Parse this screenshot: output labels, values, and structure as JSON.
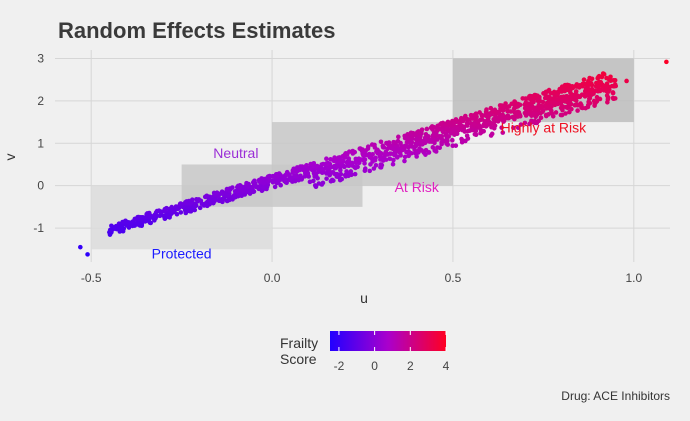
{
  "chart_data": {
    "type": "scatter",
    "title": "Random Effects Estimates",
    "xlabel": "u",
    "ylabel": "v",
    "xlim": [
      -0.6,
      1.1
    ],
    "ylim": [
      -1.8,
      3.2
    ],
    "x_ticks": [
      "-0.5",
      "0.0",
      "0.5",
      "1.0"
    ],
    "x_tick_values": [
      -0.5,
      0,
      0.5,
      1.0
    ],
    "y_ticks": [
      "3",
      "2",
      "1",
      "0",
      "-1"
    ],
    "y_tick_values": [
      3,
      2,
      1,
      0,
      -1
    ],
    "grid": true,
    "regions": [
      {
        "label": "Protected",
        "x": [
          -0.5,
          0
        ],
        "y": [
          -1.5,
          0
        ],
        "fill": "#dcdcdc",
        "label_color": "#1a1aff",
        "label_at": [
          -0.25,
          -1.72
        ]
      },
      {
        "label": "Neutral",
        "x": [
          -0.25,
          0.25
        ],
        "y": [
          -0.5,
          0.5
        ],
        "fill": "#c8c8c8",
        "label_color": "#9a2ed6",
        "label_at": [
          -0.1,
          0.65
        ]
      },
      {
        "label": "At Risk",
        "x": [
          0,
          0.5
        ],
        "y": [
          0,
          1.5
        ],
        "fill": "#c8c8c8",
        "label_color": "#e020c0",
        "label_at": [
          0.4,
          -0.15
        ]
      },
      {
        "label": "Highly at Risk",
        "x": [
          0.5,
          1.0
        ],
        "y": [
          1.5,
          3.0
        ],
        "fill": "#bdbdbd",
        "label_color": "#ee1122",
        "label_at": [
          0.75,
          1.25
        ]
      }
    ],
    "trend": {
      "x_start": -0.45,
      "x_end": 0.95
    },
    "outliers": [
      {
        "x": -0.53,
        "y": -1.45
      },
      {
        "x": -0.51,
        "y": -1.62
      },
      {
        "x": 1.09,
        "y": 2.92
      },
      {
        "x": 0.98,
        "y": 2.47
      },
      {
        "x": 0.95,
        "y": 2.35
      },
      {
        "x": 0.86,
        "y": 2.4
      },
      {
        "x": 0.78,
        "y": 2.21
      },
      {
        "x": 0.74,
        "y": 1.85
      }
    ],
    "legend": {
      "title_line1": "Frailty",
      "title_line2": "Score",
      "ticks": [
        "-2",
        "0",
        "2",
        "4"
      ],
      "tick_values": [
        -2,
        0,
        2,
        4
      ],
      "range": [
        -2.5,
        4
      ],
      "colors": [
        "#2200ff",
        "#aa00cc",
        "#ff0022"
      ],
      "position": "bottom"
    },
    "caption": "Drug: ACE Inhibitors"
  }
}
